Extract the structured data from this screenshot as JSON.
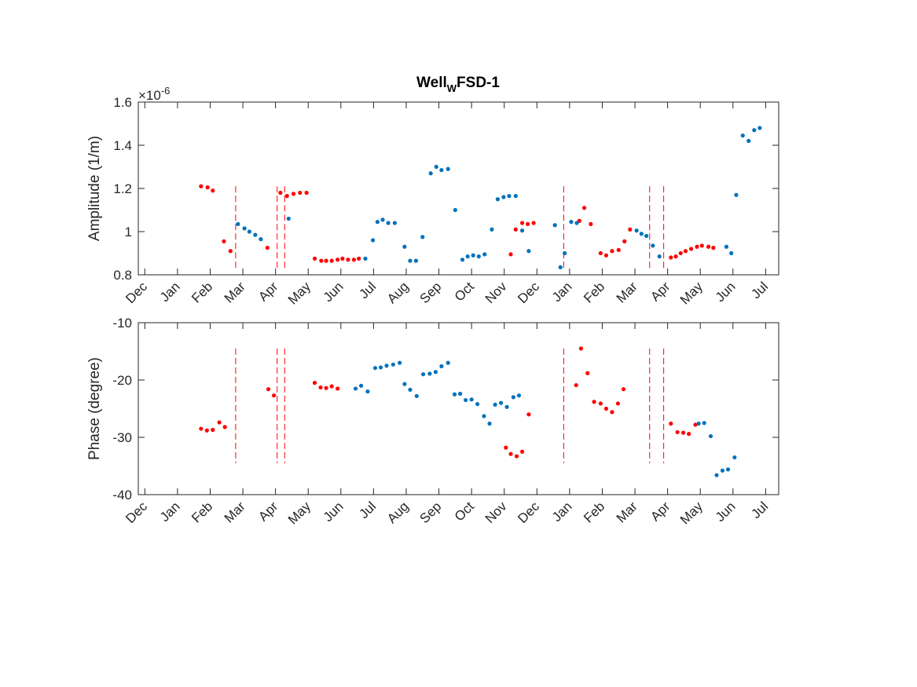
{
  "chart_data": {
    "type": "scatter",
    "title_main": "Well",
    "title_sub": "W",
    "title_tail": "FSD-1",
    "colors": {
      "red": "#ff0000",
      "blue": "#0072bd",
      "axis": "#262626"
    },
    "x_ticks": [
      "Dec",
      "Jan",
      "Feb",
      "Mar",
      "Apr",
      "May",
      "Jun",
      "Jul",
      "Aug",
      "Sep",
      "Oct",
      "Nov",
      "Dec",
      "Jan",
      "Feb",
      "Mar",
      "Apr",
      "May",
      "Jun",
      "Jul"
    ],
    "x_range_months": [
      -0.2,
      19.4
    ],
    "event_lines_months": [
      2.78,
      4.05,
      4.28,
      12.82,
      15.45,
      15.88
    ],
    "subplots": [
      {
        "ylabel": "Amplitude (1/m)",
        "exponent_label": "×10",
        "exponent_power": "-6",
        "ylim": [
          0.8,
          1.6
        ],
        "yticks": [
          0.8,
          1.0,
          1.2,
          1.4,
          1.6
        ],
        "ytick_labels": [
          "0.8",
          "1",
          "1.2",
          "1.4",
          "1.6"
        ],
        "event_line_range": [
          0.82,
          1.21
        ],
        "series": [
          {
            "color": "red",
            "points": [
              [
                1.72,
                1.21
              ],
              [
                1.92,
                1.205
              ],
              [
                2.08,
                1.19
              ],
              [
                2.42,
                0.955
              ],
              [
                2.62,
                0.91
              ],
              [
                4.15,
                1.18
              ],
              [
                4.35,
                1.165
              ],
              [
                4.55,
                1.175
              ],
              [
                4.75,
                1.18
              ],
              [
                4.95,
                1.18
              ],
              [
                5.2,
                0.875
              ],
              [
                5.4,
                0.865
              ],
              [
                5.55,
                0.865
              ],
              [
                5.72,
                0.865
              ],
              [
                5.9,
                0.87
              ],
              [
                6.05,
                0.875
              ],
              [
                6.22,
                0.87
              ],
              [
                6.4,
                0.87
              ],
              [
                6.55,
                0.875
              ],
              [
                3.75,
                0.925
              ],
              [
                11.2,
                0.895
              ],
              [
                11.35,
                1.01
              ],
              [
                11.55,
                1.04
              ],
              [
                11.72,
                1.035
              ],
              [
                11.9,
                1.04
              ],
              [
                13.3,
                1.05
              ],
              [
                13.45,
                1.11
              ],
              [
                13.65,
                1.035
              ],
              [
                13.95,
                0.9
              ],
              [
                14.12,
                0.89
              ],
              [
                14.3,
                0.91
              ],
              [
                14.5,
                0.915
              ],
              [
                14.68,
                0.955
              ],
              [
                14.85,
                1.01
              ],
              [
                16.1,
                0.88
              ],
              [
                16.25,
                0.885
              ],
              [
                16.4,
                0.9
              ],
              [
                16.55,
                0.91
              ],
              [
                16.72,
                0.92
              ],
              [
                16.9,
                0.93
              ],
              [
                17.05,
                0.935
              ],
              [
                17.25,
                0.93
              ],
              [
                17.4,
                0.925
              ]
            ]
          },
          {
            "color": "blue",
            "points": [
              [
                2.85,
                1.035
              ],
              [
                3.05,
                1.015
              ],
              [
                3.2,
                1.0
              ],
              [
                3.38,
                0.985
              ],
              [
                3.55,
                0.965
              ],
              [
                4.4,
                1.06
              ],
              [
                6.75,
                0.875
              ],
              [
                6.98,
                0.96
              ],
              [
                7.12,
                1.045
              ],
              [
                7.28,
                1.055
              ],
              [
                7.45,
                1.04
              ],
              [
                7.65,
                1.04
              ],
              [
                7.95,
                0.93
              ],
              [
                8.12,
                0.865
              ],
              [
                8.3,
                0.865
              ],
              [
                8.5,
                0.975
              ],
              [
                8.75,
                1.27
              ],
              [
                8.92,
                1.3
              ],
              [
                9.08,
                1.285
              ],
              [
                9.28,
                1.29
              ],
              [
                9.5,
                1.1
              ],
              [
                9.72,
                0.87
              ],
              [
                9.88,
                0.885
              ],
              [
                10.05,
                0.89
              ],
              [
                10.22,
                0.885
              ],
              [
                10.4,
                0.895
              ],
              [
                10.62,
                1.01
              ],
              [
                10.8,
                1.15
              ],
              [
                10.98,
                1.16
              ],
              [
                11.15,
                1.165
              ],
              [
                11.35,
                1.165
              ],
              [
                11.55,
                1.005
              ],
              [
                11.75,
                0.91
              ],
              [
                12.55,
                1.03
              ],
              [
                12.72,
                0.835
              ],
              [
                12.85,
                0.9
              ],
              [
                13.05,
                1.045
              ],
              [
                13.22,
                1.04
              ],
              [
                15.05,
                1.005
              ],
              [
                15.2,
                0.99
              ],
              [
                15.35,
                0.98
              ],
              [
                15.55,
                0.935
              ],
              [
                15.75,
                0.885
              ],
              [
                17.8,
                0.93
              ],
              [
                17.95,
                0.9
              ],
              [
                18.1,
                1.17
              ],
              [
                18.3,
                1.445
              ],
              [
                18.48,
                1.42
              ],
              [
                18.65,
                1.47
              ],
              [
                18.82,
                1.48
              ]
            ]
          }
        ]
      },
      {
        "ylabel": "Phase (degree)",
        "ylim": [
          -40,
          -10
        ],
        "yticks": [
          -40,
          -30,
          -20,
          -10
        ],
        "ytick_labels": [
          "-40",
          "-30",
          "-20",
          "-10"
        ],
        "event_line_range": [
          -34.5,
          -14.5
        ],
        "series": [
          {
            "color": "red",
            "points": [
              [
                1.72,
                -28.5
              ],
              [
                1.9,
                -28.8
              ],
              [
                2.08,
                -28.7
              ],
              [
                2.28,
                -27.4
              ],
              [
                2.45,
                -28.2
              ],
              [
                3.78,
                -21.6
              ],
              [
                3.95,
                -22.7
              ],
              [
                5.2,
                -20.5
              ],
              [
                5.38,
                -21.3
              ],
              [
                5.55,
                -21.4
              ],
              [
                5.72,
                -21.1
              ],
              [
                5.9,
                -21.5
              ],
              [
                11.05,
                -31.8
              ],
              [
                11.2,
                -32.9
              ],
              [
                11.38,
                -33.3
              ],
              [
                11.55,
                -32.5
              ],
              [
                11.75,
                -26.0
              ],
              [
                13.2,
                -20.9
              ],
              [
                13.35,
                -14.5
              ],
              [
                13.55,
                -18.8
              ],
              [
                13.75,
                -23.8
              ],
              [
                13.95,
                -24.1
              ],
              [
                14.12,
                -25.0
              ],
              [
                14.3,
                -25.6
              ],
              [
                14.48,
                -24.1
              ],
              [
                14.65,
                -21.6
              ],
              [
                16.1,
                -27.6
              ],
              [
                16.3,
                -29.1
              ],
              [
                16.48,
                -29.2
              ],
              [
                16.65,
                -29.4
              ],
              [
                16.85,
                -27.8
              ]
            ]
          },
          {
            "color": "blue",
            "points": [
              [
                6.45,
                -21.5
              ],
              [
                6.62,
                -21.0
              ],
              [
                6.82,
                -22.0
              ],
              [
                7.05,
                -17.9
              ],
              [
                7.22,
                -17.8
              ],
              [
                7.4,
                -17.5
              ],
              [
                7.6,
                -17.3
              ],
              [
                7.8,
                -17.0
              ],
              [
                7.95,
                -20.7
              ],
              [
                8.12,
                -21.7
              ],
              [
                8.32,
                -22.8
              ],
              [
                8.52,
                -19.0
              ],
              [
                8.72,
                -18.9
              ],
              [
                8.9,
                -18.6
              ],
              [
                9.08,
                -17.6
              ],
              [
                9.28,
                -17.0
              ],
              [
                9.48,
                -22.5
              ],
              [
                9.65,
                -22.4
              ],
              [
                9.82,
                -23.5
              ],
              [
                10.0,
                -23.4
              ],
              [
                10.18,
                -24.2
              ],
              [
                10.38,
                -26.3
              ],
              [
                10.55,
                -27.6
              ],
              [
                10.72,
                -24.3
              ],
              [
                10.9,
                -24.0
              ],
              [
                11.08,
                -24.7
              ],
              [
                11.28,
                -23.0
              ],
              [
                11.45,
                -22.7
              ],
              [
                16.95,
                -27.6
              ],
              [
                17.12,
                -27.5
              ],
              [
                17.32,
                -29.8
              ],
              [
                17.5,
                -36.6
              ],
              [
                17.68,
                -35.8
              ],
              [
                17.85,
                -35.6
              ],
              [
                18.05,
                -33.5
              ]
            ]
          }
        ]
      }
    ]
  }
}
